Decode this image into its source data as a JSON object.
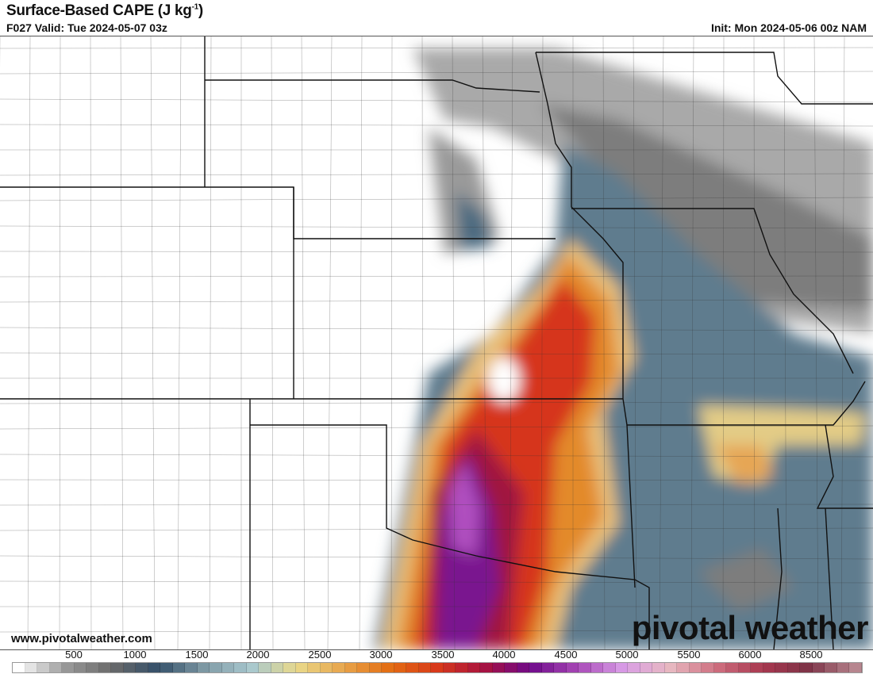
{
  "header": {
    "title": "Surface-Based CAPE (J kg",
    "title_sup": "-1",
    "title_end": ")",
    "valid": "F027 Valid: Tue 2024-05-07 03z",
    "init": "Init: Mon 2024-05-06 00z NAM"
  },
  "watermark": {
    "url": "www.pivotalweather.com",
    "logo": "pivotal weather"
  },
  "colorbar": {
    "tick_labels": [
      "500",
      "1000",
      "1500",
      "2000",
      "2500",
      "3000",
      "3500",
      "4000",
      "4500",
      "5000",
      "5500",
      "6000",
      "8500"
    ],
    "stops": [
      "#ffffff",
      "#9a9a9a",
      "#6a6a6a",
      "#34506a",
      "#7f9aa5",
      "#a8c8cf",
      "#e9d98a",
      "#e8a44a",
      "#e36c12",
      "#d8391a",
      "#a8123f",
      "#6e0a8a",
      "#a646b5",
      "#d89ce6",
      "#e8b9c2",
      "#cf7080",
      "#a8384f",
      "#7e3448",
      "#b7868f"
    ]
  }
}
